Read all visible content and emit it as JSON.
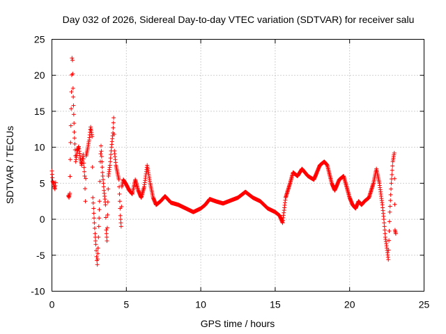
{
  "chart_data": {
    "type": "scatter",
    "title": "Day 032 of 2026, Sidereal Day-to-day VTEC variation (SDTVAR) for receiver salu",
    "xlabel": "GPS time / hours",
    "ylabel": "SDTVAR / TECUs",
    "xlim": [
      0,
      25
    ],
    "ylim": [
      -10,
      25
    ],
    "xticks": [
      0,
      5,
      10,
      15,
      20,
      25
    ],
    "yticks": [
      -10,
      -5,
      0,
      5,
      10,
      15,
      20,
      25
    ],
    "grid": true,
    "marker": "+",
    "color": "#ff0000",
    "series": [
      {
        "name": "SDTVAR",
        "points": [
          [
            0.0,
            6.7
          ],
          [
            0.05,
            5.3
          ],
          [
            0.1,
            5.0
          ],
          [
            0.15,
            4.6
          ],
          [
            0.2,
            4.2
          ],
          [
            0.25,
            5.1
          ],
          [
            1.1,
            3.3
          ],
          [
            1.15,
            3.0
          ],
          [
            1.2,
            3.6
          ],
          [
            1.35,
            22.4
          ],
          [
            1.38,
            22.1
          ],
          [
            1.4,
            20.2
          ],
          [
            1.42,
            18.2
          ],
          [
            1.45,
            15.8
          ],
          [
            1.5,
            12.1
          ],
          [
            1.6,
            8.0
          ],
          [
            1.7,
            9.5
          ],
          [
            1.8,
            10.1
          ],
          [
            1.9,
            8.5
          ],
          [
            2.0,
            7.5
          ],
          [
            2.1,
            9.0
          ],
          [
            2.2,
            6.0
          ],
          [
            2.25,
            2.5
          ],
          [
            2.3,
            8.8
          ],
          [
            2.4,
            9.8
          ],
          [
            2.5,
            11.0
          ],
          [
            2.6,
            12.8
          ],
          [
            2.7,
            11.5
          ],
          [
            2.75,
            3.0
          ],
          [
            2.8,
            1.5
          ],
          [
            2.85,
            -0.5
          ],
          [
            2.9,
            -2.0
          ],
          [
            2.95,
            -3.5
          ],
          [
            3.0,
            -5.2
          ],
          [
            3.05,
            -6.3
          ],
          [
            3.1,
            -4.0
          ],
          [
            3.15,
            -1.0
          ],
          [
            3.2,
            2.5
          ],
          [
            3.25,
            8.0
          ],
          [
            3.3,
            10.2
          ],
          [
            3.4,
            6.5
          ],
          [
            3.5,
            4.0
          ],
          [
            3.6,
            2.0
          ],
          [
            3.65,
            -1.5
          ],
          [
            3.7,
            -3.0
          ],
          [
            3.8,
            6.0
          ],
          [
            3.9,
            7.5
          ],
          [
            4.0,
            10.0
          ],
          [
            4.1,
            12.0
          ],
          [
            4.15,
            14.1
          ],
          [
            4.2,
            9.5
          ],
          [
            4.3,
            7.5
          ],
          [
            4.4,
            6.5
          ],
          [
            4.5,
            5.5
          ],
          [
            4.6,
            0.5
          ],
          [
            4.65,
            -1.0
          ],
          [
            4.7,
            4.5
          ],
          [
            4.8,
            5.5
          ],
          [
            5.0,
            4.8
          ],
          [
            5.2,
            4.0
          ],
          [
            5.4,
            3.5
          ],
          [
            5.6,
            5.5
          ],
          [
            5.8,
            4.0
          ],
          [
            6.0,
            3.0
          ],
          [
            6.2,
            4.5
          ],
          [
            6.4,
            7.5
          ],
          [
            6.6,
            5.0
          ],
          [
            6.8,
            3.0
          ],
          [
            7.0,
            2.0
          ],
          [
            7.3,
            2.5
          ],
          [
            7.6,
            3.2
          ],
          [
            8.0,
            2.3
          ],
          [
            8.5,
            2.0
          ],
          [
            9.0,
            1.5
          ],
          [
            9.5,
            1.0
          ],
          [
            10.0,
            1.5
          ],
          [
            10.3,
            2.0
          ],
          [
            10.6,
            2.8
          ],
          [
            11.0,
            2.5
          ],
          [
            11.5,
            2.2
          ],
          [
            12.0,
            2.6
          ],
          [
            12.5,
            3.0
          ],
          [
            13.0,
            3.8
          ],
          [
            13.5,
            3.0
          ],
          [
            14.0,
            2.5
          ],
          [
            14.5,
            1.5
          ],
          [
            15.0,
            1.0
          ],
          [
            15.3,
            0.5
          ],
          [
            15.5,
            -0.5
          ],
          [
            15.7,
            3.0
          ],
          [
            16.0,
            5.0
          ],
          [
            16.2,
            6.5
          ],
          [
            16.5,
            6.0
          ],
          [
            16.8,
            7.0
          ],
          [
            17.2,
            6.0
          ],
          [
            17.6,
            5.5
          ],
          [
            18.0,
            7.5
          ],
          [
            18.3,
            8.0
          ],
          [
            18.5,
            7.5
          ],
          [
            18.8,
            5.0
          ],
          [
            19.0,
            4.0
          ],
          [
            19.3,
            5.5
          ],
          [
            19.6,
            6.0
          ],
          [
            19.8,
            4.5
          ],
          [
            20.0,
            3.0
          ],
          [
            20.2,
            2.0
          ],
          [
            20.4,
            1.5
          ],
          [
            20.6,
            2.5
          ],
          [
            20.8,
            2.0
          ],
          [
            21.0,
            2.5
          ],
          [
            21.3,
            3.0
          ],
          [
            21.6,
            5.0
          ],
          [
            21.8,
            7.0
          ],
          [
            22.0,
            5.0
          ],
          [
            22.2,
            2.0
          ],
          [
            22.3,
            0.0
          ],
          [
            22.4,
            -2.5
          ],
          [
            22.5,
            -4.0
          ],
          [
            22.6,
            -5.6
          ],
          [
            22.7,
            1.0
          ],
          [
            22.8,
            5.0
          ],
          [
            22.9,
            8.0
          ],
          [
            23.0,
            9.2
          ],
          [
            23.05,
            -1.5
          ],
          [
            23.1,
            -2.0
          ]
        ]
      }
    ]
  }
}
